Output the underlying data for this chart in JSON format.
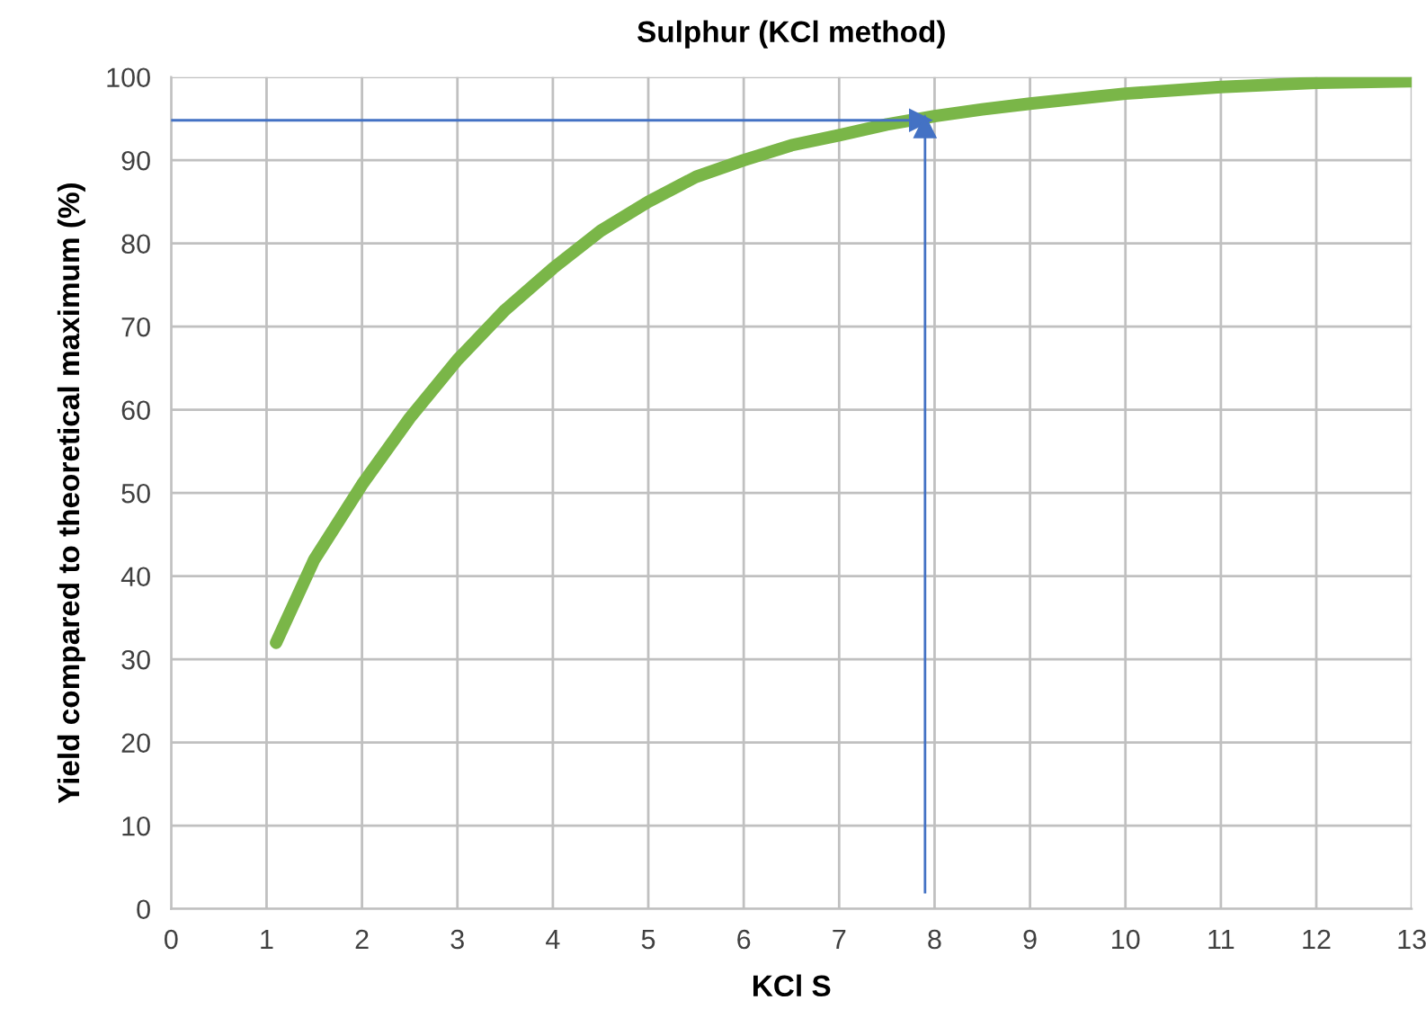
{
  "chart_data": {
    "type": "line",
    "title": "Sulphur (KCl method)",
    "xlabel": "KCl S",
    "ylabel": "Yield compared to theoretical maximum (%)",
    "xlim": [
      0,
      13
    ],
    "xticks": [
      0,
      1,
      2,
      3,
      4,
      5,
      6,
      7,
      8,
      9,
      10,
      11,
      12,
      13
    ],
    "ylim": [
      0,
      100
    ],
    "yticks": [
      0,
      10,
      20,
      30,
      40,
      50,
      60,
      70,
      80,
      90,
      100
    ],
    "grid": true,
    "legend": false,
    "marker": "none",
    "line_style": "solid",
    "series": [
      {
        "color": "#7ab648",
        "x": [
          1.1,
          1.5,
          2,
          2.5,
          3,
          3.5,
          4,
          4.5,
          5,
          5.5,
          6,
          6.5,
          7,
          7.5,
          8,
          8.5,
          9,
          10,
          11,
          12,
          13
        ],
        "values": [
          32,
          42,
          51,
          59,
          66,
          72,
          77,
          81.5,
          85,
          88,
          90,
          91.8,
          93,
          94.3,
          95.3,
          96.1,
          96.8,
          98,
          98.8,
          99.3,
          99.5
        ]
      },
      {
        "type": "line",
        "marker": "triangle",
        "color": "#4472c4",
        "x": [
          0,
          7.85
        ],
        "values": [
          94.8,
          94.8
        ]
      },
      {
        "type": "line",
        "marker": "triangle",
        "color": "#4472c4",
        "x": [
          7.9,
          7.9
        ],
        "values": [
          2,
          94
        ]
      }
    ]
  }
}
